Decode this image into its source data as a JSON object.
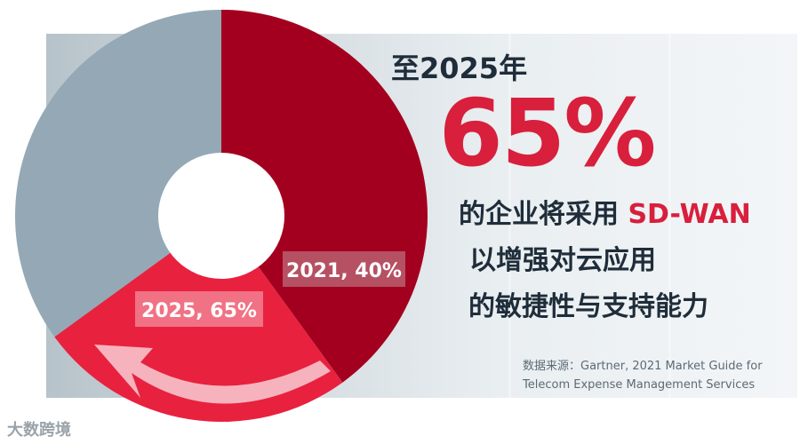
{
  "chart_data": {
    "type": "pie",
    "donut": true,
    "slices": [
      {
        "label": "2021, 40%",
        "value": 40,
        "color": "#a3001f"
      },
      {
        "label": "2025, 65%",
        "value": 25,
        "color": "#e8213f"
      },
      {
        "label": "",
        "value": 35,
        "color": "#94a9b5"
      }
    ]
  },
  "headline": {
    "year": "至2025年",
    "big": "65%",
    "line1_pre": "的企业将采用 ",
    "line1_accent": "SD-WAN",
    "line2": "以增强对云应用",
    "line3": "的敏捷性与支持能力"
  },
  "source": {
    "line1": "数据来源：Gartner, 2021 Market Guide for",
    "line2": "Telecom Expense Management Services"
  },
  "watermark": "大数跨境",
  "colors": {
    "accent": "#d81f3c",
    "dark": "#1f2d3a"
  }
}
